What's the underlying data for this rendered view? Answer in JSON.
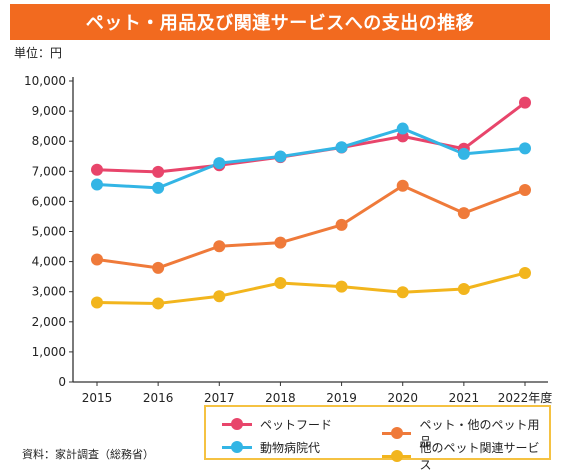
{
  "title": "ペット・用品及び関連サービスへの支出の推移",
  "unit": "単位：円",
  "source": "資料：家計調査（総務省）",
  "colors": {
    "title_bg": "#f26a1f",
    "legend_border": "#f5c242"
  },
  "chart_data": {
    "type": "line",
    "x": [
      "2015",
      "2016",
      "2017",
      "2018",
      "2019",
      "2020",
      "2021",
      "2022年度"
    ],
    "ylim": [
      0,
      10000
    ],
    "yticks": [
      "0",
      "1,000",
      "2,000",
      "3,000",
      "4,000",
      "5,000",
      "6,000",
      "7,000",
      "8,000",
      "9,000",
      "10,000"
    ],
    "grid": false,
    "legend_position": "bottom-right",
    "series": [
      {
        "name": "ペットフード",
        "color": "#e8456b",
        "values": [
          7050,
          6980,
          7200,
          7470,
          7790,
          8160,
          7750,
          9280
        ]
      },
      {
        "name": "ペット・他のペット用品",
        "color": "#ef7a3a",
        "values": [
          4070,
          3790,
          4510,
          4630,
          5220,
          6520,
          5610,
          6380
        ]
      },
      {
        "name": "動物病院代",
        "color": "#33b5e5",
        "values": [
          6560,
          6450,
          7270,
          7490,
          7800,
          8420,
          7580,
          7760
        ]
      },
      {
        "name": "他のペット関連サービス",
        "color": "#f2b51d",
        "values": [
          2640,
          2610,
          2850,
          3290,
          3170,
          2980,
          3090,
          3620
        ]
      }
    ]
  }
}
